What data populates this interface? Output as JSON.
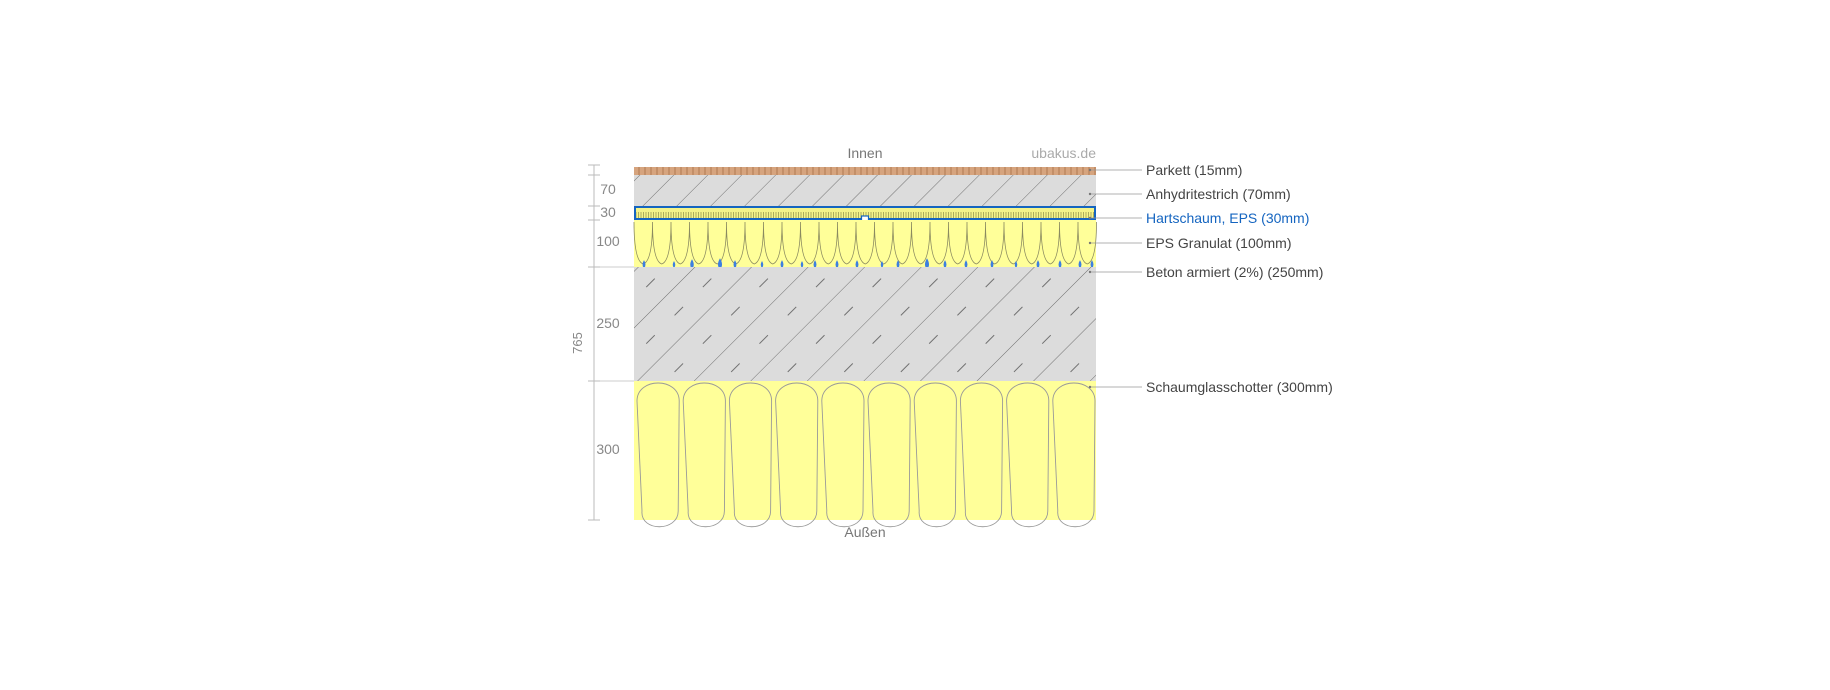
{
  "labels": {
    "top": "Innen",
    "bottom": "Außen",
    "brand": "ubakus.de",
    "total": "765"
  },
  "layers": [
    {
      "id": "parkett",
      "name": "Parkett (15mm)",
      "dim": "",
      "thickness_mm": 15,
      "material": "wood",
      "fill": "#d6a47e",
      "selected": false
    },
    {
      "id": "anhydrit",
      "name": "Anhydritestrich (70mm)",
      "dim": "70",
      "thickness_mm": 70,
      "material": "screed",
      "fill": "#dcdcdc",
      "selected": false
    },
    {
      "id": "hartschaum",
      "name": "Hartschaum, EPS (30mm)",
      "dim": "30",
      "thickness_mm": 30,
      "material": "rigid-foam",
      "fill": "#f4f48a",
      "selected": true
    },
    {
      "id": "eps-granulat",
      "name": "EPS Granulat (100mm)",
      "dim": "100",
      "thickness_mm": 100,
      "material": "granulate",
      "fill": "#ffff99",
      "selected": false
    },
    {
      "id": "beton",
      "name": "Beton armiert (2%) (250mm)",
      "dim": "250",
      "thickness_mm": 250,
      "material": "concrete",
      "fill": "#dcdcdc",
      "selected": false
    },
    {
      "id": "schaumglas",
      "name": "Schaumglasschotter (300mm)",
      "dim": "300",
      "thickness_mm": 300,
      "material": "gravel",
      "fill": "#ffff99",
      "selected": false
    }
  ],
  "colors": {
    "label": "#444444",
    "dimension": "#888888",
    "brand": "#aaaaaa",
    "selected": "#1565c0",
    "hatch": "#555555",
    "drop": "#3d7fe0"
  }
}
